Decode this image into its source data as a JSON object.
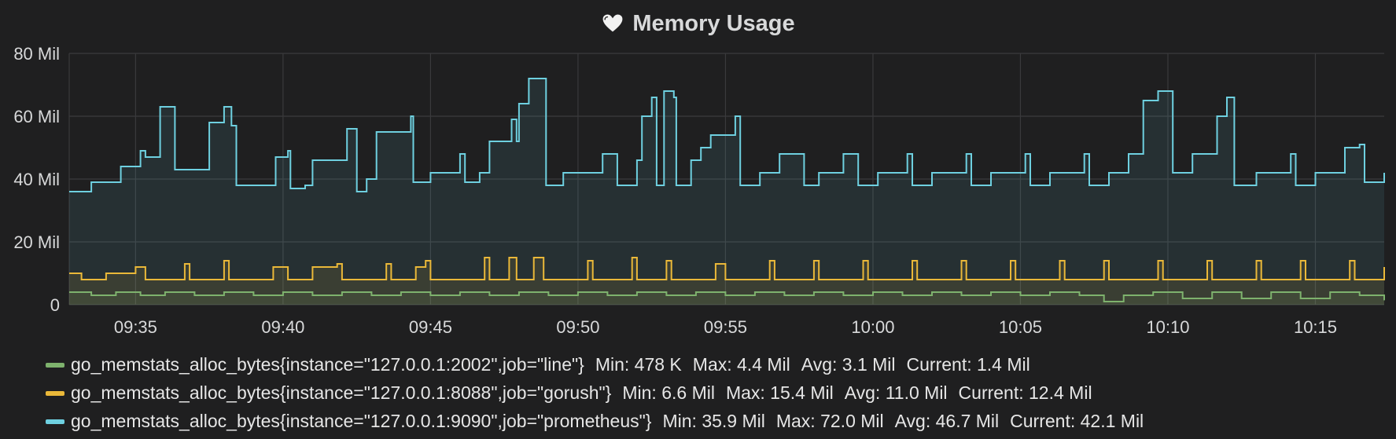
{
  "panel": {
    "title": "Memory Usage",
    "title_icon": "heart-icon"
  },
  "chart_data": {
    "type": "line",
    "title": "Memory Usage",
    "xlabel": "",
    "ylabel": "",
    "y_unit": "bytes (millions)",
    "ylim": [
      0,
      80
    ],
    "y_ticks": [
      "0",
      "20 Mil",
      "40 Mil",
      "60 Mil",
      "80 Mil"
    ],
    "y_tick_values": [
      0,
      20,
      40,
      60,
      80
    ],
    "x_range": [
      "09:32:45",
      "10:17:20"
    ],
    "x_ticks": [
      "09:35",
      "09:40",
      "09:45",
      "09:50",
      "09:55",
      "10:00",
      "10:05",
      "10:10",
      "10:15"
    ],
    "grid": true,
    "fill": true,
    "legend_position": "bottom",
    "series": [
      {
        "name": "go_memstats_alloc_bytes{instance=\"127.0.0.1:9090\",job=\"prometheus\"}",
        "color": "#6ed0e0",
        "min": "35.9 Mil",
        "max": "72.0 Mil",
        "avg": "46.7 Mil",
        "current": "42.1 Mil",
        "points": [
          [
            "09:32:45",
            36
          ],
          [
            "09:33:30",
            39
          ],
          [
            "09:34:30",
            44
          ],
          [
            "09:35:10",
            49
          ],
          [
            "09:35:20",
            47
          ],
          [
            "09:35:50",
            63
          ],
          [
            "09:36:20",
            43
          ],
          [
            "09:37:30",
            58
          ],
          [
            "09:38:00",
            63
          ],
          [
            "09:38:15",
            57
          ],
          [
            "09:38:25",
            38
          ],
          [
            "09:39:45",
            47
          ],
          [
            "09:40:10",
            49
          ],
          [
            "09:40:15",
            37
          ],
          [
            "09:40:45",
            38
          ],
          [
            "09:41:00",
            46
          ],
          [
            "09:42:10",
            56
          ],
          [
            "09:42:30",
            36
          ],
          [
            "09:42:50",
            40
          ],
          [
            "09:43:10",
            55
          ],
          [
            "09:44:20",
            60
          ],
          [
            "09:44:25",
            39
          ],
          [
            "09:45:00",
            42
          ],
          [
            "09:46:00",
            48
          ],
          [
            "09:46:10",
            39
          ],
          [
            "09:46:40",
            42
          ],
          [
            "09:47:00",
            52
          ],
          [
            "09:47:45",
            59
          ],
          [
            "09:47:55",
            52
          ],
          [
            "09:48:00",
            64
          ],
          [
            "09:48:20",
            72
          ],
          [
            "09:48:50",
            72
          ],
          [
            "09:48:55",
            38
          ],
          [
            "09:49:30",
            42
          ],
          [
            "09:50:50",
            48
          ],
          [
            "09:51:20",
            38
          ],
          [
            "09:52:00",
            46
          ],
          [
            "09:52:10",
            60
          ],
          [
            "09:52:30",
            66
          ],
          [
            "09:52:40",
            38
          ],
          [
            "09:52:55",
            68
          ],
          [
            "09:53:15",
            66
          ],
          [
            "09:53:20",
            38
          ],
          [
            "09:53:50",
            46
          ],
          [
            "09:54:10",
            50
          ],
          [
            "09:54:30",
            54
          ],
          [
            "09:55:20",
            60
          ],
          [
            "09:55:30",
            38
          ],
          [
            "09:56:10",
            42
          ],
          [
            "09:56:50",
            48
          ],
          [
            "09:57:30",
            48
          ],
          [
            "09:57:40",
            38
          ],
          [
            "09:58:10",
            42
          ],
          [
            "09:59:00",
            48
          ],
          [
            "09:59:20",
            48
          ],
          [
            "09:59:30",
            38
          ],
          [
            "10:00:10",
            42
          ],
          [
            "10:01:10",
            48
          ],
          [
            "10:01:20",
            38
          ],
          [
            "10:02:00",
            42
          ],
          [
            "10:03:10",
            48
          ],
          [
            "10:03:20",
            38
          ],
          [
            "10:04:00",
            42
          ],
          [
            "10:05:10",
            48
          ],
          [
            "10:05:20",
            38
          ],
          [
            "10:06:00",
            42
          ],
          [
            "10:07:10",
            48
          ],
          [
            "10:07:20",
            38
          ],
          [
            "10:08:00",
            42
          ],
          [
            "10:08:40",
            48
          ],
          [
            "10:09:10",
            65
          ],
          [
            "10:09:40",
            68
          ],
          [
            "10:10:00",
            68
          ],
          [
            "10:10:10",
            42
          ],
          [
            "10:10:50",
            48
          ],
          [
            "10:11:40",
            60
          ],
          [
            "10:12:00",
            66
          ],
          [
            "10:12:15",
            38
          ],
          [
            "10:13:00",
            42
          ],
          [
            "10:14:10",
            48
          ],
          [
            "10:14:20",
            38
          ],
          [
            "10:15:00",
            42
          ],
          [
            "10:16:00",
            50
          ],
          [
            "10:16:30",
            51
          ],
          [
            "10:16:40",
            39
          ],
          [
            "10:17:20",
            42
          ]
        ]
      },
      {
        "name": "go_memstats_alloc_bytes{instance=\"127.0.0.1:8088\",job=\"gorush\"}",
        "color": "#eab839",
        "min": "6.6 Mil",
        "max": "15.4 Mil",
        "avg": "11.0 Mil",
        "current": "12.4 Mil",
        "points": [
          [
            "09:32:45",
            10
          ],
          [
            "09:33:10",
            8
          ],
          [
            "09:34:00",
            10
          ],
          [
            "09:35:00",
            12
          ],
          [
            "09:35:20",
            8
          ],
          [
            "09:36:40",
            13
          ],
          [
            "09:36:50",
            8
          ],
          [
            "09:38:00",
            14
          ],
          [
            "09:38:10",
            8
          ],
          [
            "09:39:40",
            12
          ],
          [
            "09:40:10",
            8
          ],
          [
            "09:41:00",
            12
          ],
          [
            "09:41:50",
            13
          ],
          [
            "09:42:00",
            8
          ],
          [
            "09:43:30",
            13
          ],
          [
            "09:43:40",
            8
          ],
          [
            "09:44:30",
            12
          ],
          [
            "09:44:50",
            14
          ],
          [
            "09:45:00",
            8
          ],
          [
            "09:46:50",
            15
          ],
          [
            "09:47:00",
            8
          ],
          [
            "09:47:40",
            15
          ],
          [
            "09:47:55",
            8
          ],
          [
            "09:48:30",
            15
          ],
          [
            "09:48:50",
            8
          ],
          [
            "09:50:20",
            14
          ],
          [
            "09:50:30",
            8
          ],
          [
            "09:51:50",
            15
          ],
          [
            "09:52:00",
            8
          ],
          [
            "09:53:00",
            14
          ],
          [
            "09:53:10",
            8
          ],
          [
            "09:54:40",
            13
          ],
          [
            "09:55:00",
            8
          ],
          [
            "09:56:30",
            14
          ],
          [
            "09:56:40",
            8
          ],
          [
            "09:58:00",
            14
          ],
          [
            "09:58:10",
            8
          ],
          [
            "09:59:40",
            14
          ],
          [
            "09:59:50",
            8
          ],
          [
            "10:01:20",
            14
          ],
          [
            "10:01:30",
            8
          ],
          [
            "10:03:00",
            14
          ],
          [
            "10:03:10",
            8
          ],
          [
            "10:04:40",
            14
          ],
          [
            "10:04:50",
            8
          ],
          [
            "10:06:20",
            14
          ],
          [
            "10:06:30",
            8
          ],
          [
            "10:07:50",
            14
          ],
          [
            "10:08:00",
            8
          ],
          [
            "10:09:40",
            14
          ],
          [
            "10:09:50",
            8
          ],
          [
            "10:11:20",
            14
          ],
          [
            "10:11:30",
            8
          ],
          [
            "10:13:00",
            14
          ],
          [
            "10:13:10",
            8
          ],
          [
            "10:14:30",
            14
          ],
          [
            "10:14:40",
            8
          ],
          [
            "10:16:10",
            14
          ],
          [
            "10:16:20",
            8
          ],
          [
            "10:17:20",
            12
          ]
        ]
      },
      {
        "name": "go_memstats_alloc_bytes{instance=\"127.0.0.1:2002\",job=\"line\"}",
        "color": "#7eb26d",
        "min": "478 K",
        "max": "4.4 Mil",
        "avg": "3.1 Mil",
        "current": "1.4 Mil",
        "points": [
          [
            "09:32:45",
            4
          ],
          [
            "09:33:30",
            3
          ],
          [
            "09:34:20",
            4
          ],
          [
            "09:35:10",
            3
          ],
          [
            "09:36:00",
            4
          ],
          [
            "09:37:00",
            3
          ],
          [
            "09:38:00",
            4
          ],
          [
            "09:39:00",
            3
          ],
          [
            "09:40:00",
            4
          ],
          [
            "09:41:00",
            3
          ],
          [
            "09:42:00",
            4
          ],
          [
            "09:43:00",
            3
          ],
          [
            "09:44:00",
            4
          ],
          [
            "09:45:00",
            3
          ],
          [
            "09:46:00",
            4
          ],
          [
            "09:47:00",
            3
          ],
          [
            "09:48:00",
            4
          ],
          [
            "09:49:00",
            3
          ],
          [
            "09:50:00",
            4
          ],
          [
            "09:51:00",
            3
          ],
          [
            "09:52:00",
            4
          ],
          [
            "09:53:00",
            3
          ],
          [
            "09:54:00",
            4
          ],
          [
            "09:55:00",
            3
          ],
          [
            "09:56:00",
            4
          ],
          [
            "09:57:00",
            3
          ],
          [
            "09:58:00",
            4
          ],
          [
            "09:59:00",
            3
          ],
          [
            "10:00:00",
            4
          ],
          [
            "10:01:00",
            3
          ],
          [
            "10:02:00",
            4
          ],
          [
            "10:03:00",
            3
          ],
          [
            "10:04:00",
            4
          ],
          [
            "10:05:00",
            3
          ],
          [
            "10:06:00",
            4
          ],
          [
            "10:07:00",
            3
          ],
          [
            "10:07:50",
            1
          ],
          [
            "10:08:30",
            3
          ],
          [
            "10:09:30",
            4
          ],
          [
            "10:10:30",
            2
          ],
          [
            "10:11:30",
            4
          ],
          [
            "10:12:30",
            2
          ],
          [
            "10:13:30",
            4
          ],
          [
            "10:14:30",
            2
          ],
          [
            "10:15:30",
            4
          ],
          [
            "10:16:30",
            3
          ],
          [
            "10:17:20",
            1.4
          ]
        ]
      }
    ]
  },
  "legend": {
    "items": [
      {
        "color": "#7eb26d",
        "name": "go_memstats_alloc_bytes{instance=\"127.0.0.1:2002\",job=\"line\"}",
        "min": "Min: 478 K",
        "max": "Max: 4.4 Mil",
        "avg": "Avg: 3.1 Mil",
        "current": "Current: 1.4 Mil"
      },
      {
        "color": "#eab839",
        "name": "go_memstats_alloc_bytes{instance=\"127.0.0.1:8088\",job=\"gorush\"}",
        "min": "Min: 6.6 Mil",
        "max": "Max: 15.4 Mil",
        "avg": "Avg: 11.0 Mil",
        "current": "Current: 12.4 Mil"
      },
      {
        "color": "#6ed0e0",
        "name": "go_memstats_alloc_bytes{instance=\"127.0.0.1:9090\",job=\"prometheus\"}",
        "min": "Min: 35.9 Mil",
        "max": "Max: 72.0 Mil",
        "avg": "Avg: 46.7 Mil",
        "current": "Current: 42.1 Mil"
      }
    ]
  },
  "colors": {
    "background": "#1f1f20",
    "grid": "#3a3a3c",
    "text": "#d8d9da"
  }
}
